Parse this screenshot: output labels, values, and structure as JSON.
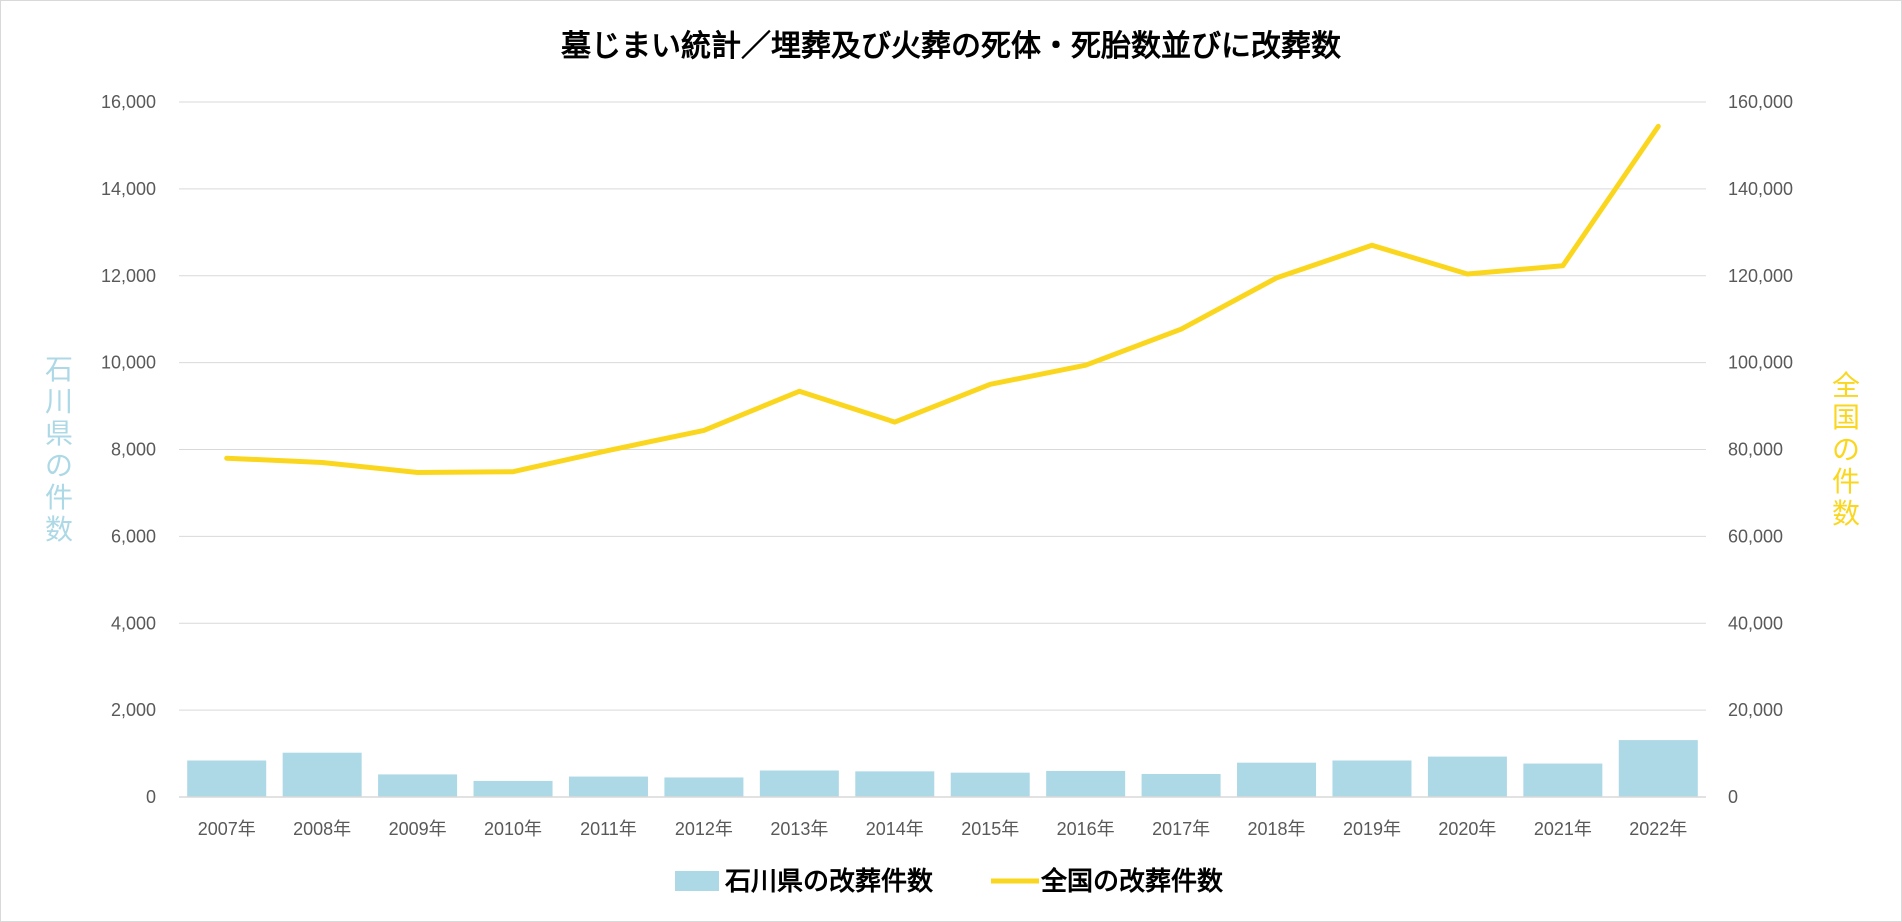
{
  "chart_data": {
    "type": "bar+line",
    "title": "墓じまい統計／埋葬及び火葬の死体・死胎数並びに改葬数",
    "categories": [
      "2007年",
      "2008年",
      "2009年",
      "2010年",
      "2011年",
      "2012年",
      "2013年",
      "2014年",
      "2015年",
      "2016年",
      "2017年",
      "2018年",
      "2019年",
      "2020年",
      "2021年",
      "2022年"
    ],
    "series": [
      {
        "name": "石川県の改葬件数",
        "type": "bar",
        "axis": "left",
        "color": "#add8e6",
        "values": [
          840,
          1020,
          520,
          370,
          470,
          450,
          610,
          590,
          560,
          600,
          530,
          790,
          840,
          930,
          770,
          1310
        ]
      },
      {
        "name": "全国の改葬件数",
        "type": "line",
        "axis": "right",
        "color": "#fad71e",
        "values": [
          78000,
          77000,
          74700,
          74900,
          79800,
          84400,
          93400,
          86300,
          95000,
          99400,
          107700,
          119500,
          127000,
          120400,
          122300,
          154400
        ]
      }
    ],
    "y_left": {
      "label": "石川県の件数",
      "color": "#add8e6",
      "range": [
        0,
        16000
      ],
      "ticks": [
        "0",
        "2,000",
        "4,000",
        "6,000",
        "8,000",
        "10,000",
        "12,000",
        "14,000",
        "16,000"
      ]
    },
    "y_right": {
      "label": "全国の件数",
      "color": "#fad71e",
      "range": [
        0,
        160000
      ],
      "ticks": [
        "0",
        "20,000",
        "40,000",
        "60,000",
        "80,000",
        "100,000",
        "120,000",
        "140,000",
        "160,000"
      ]
    },
    "grid": true,
    "legend_position": "bottom-center",
    "axis_label_color": "#595959",
    "grid_color": "#d9d9d9"
  }
}
